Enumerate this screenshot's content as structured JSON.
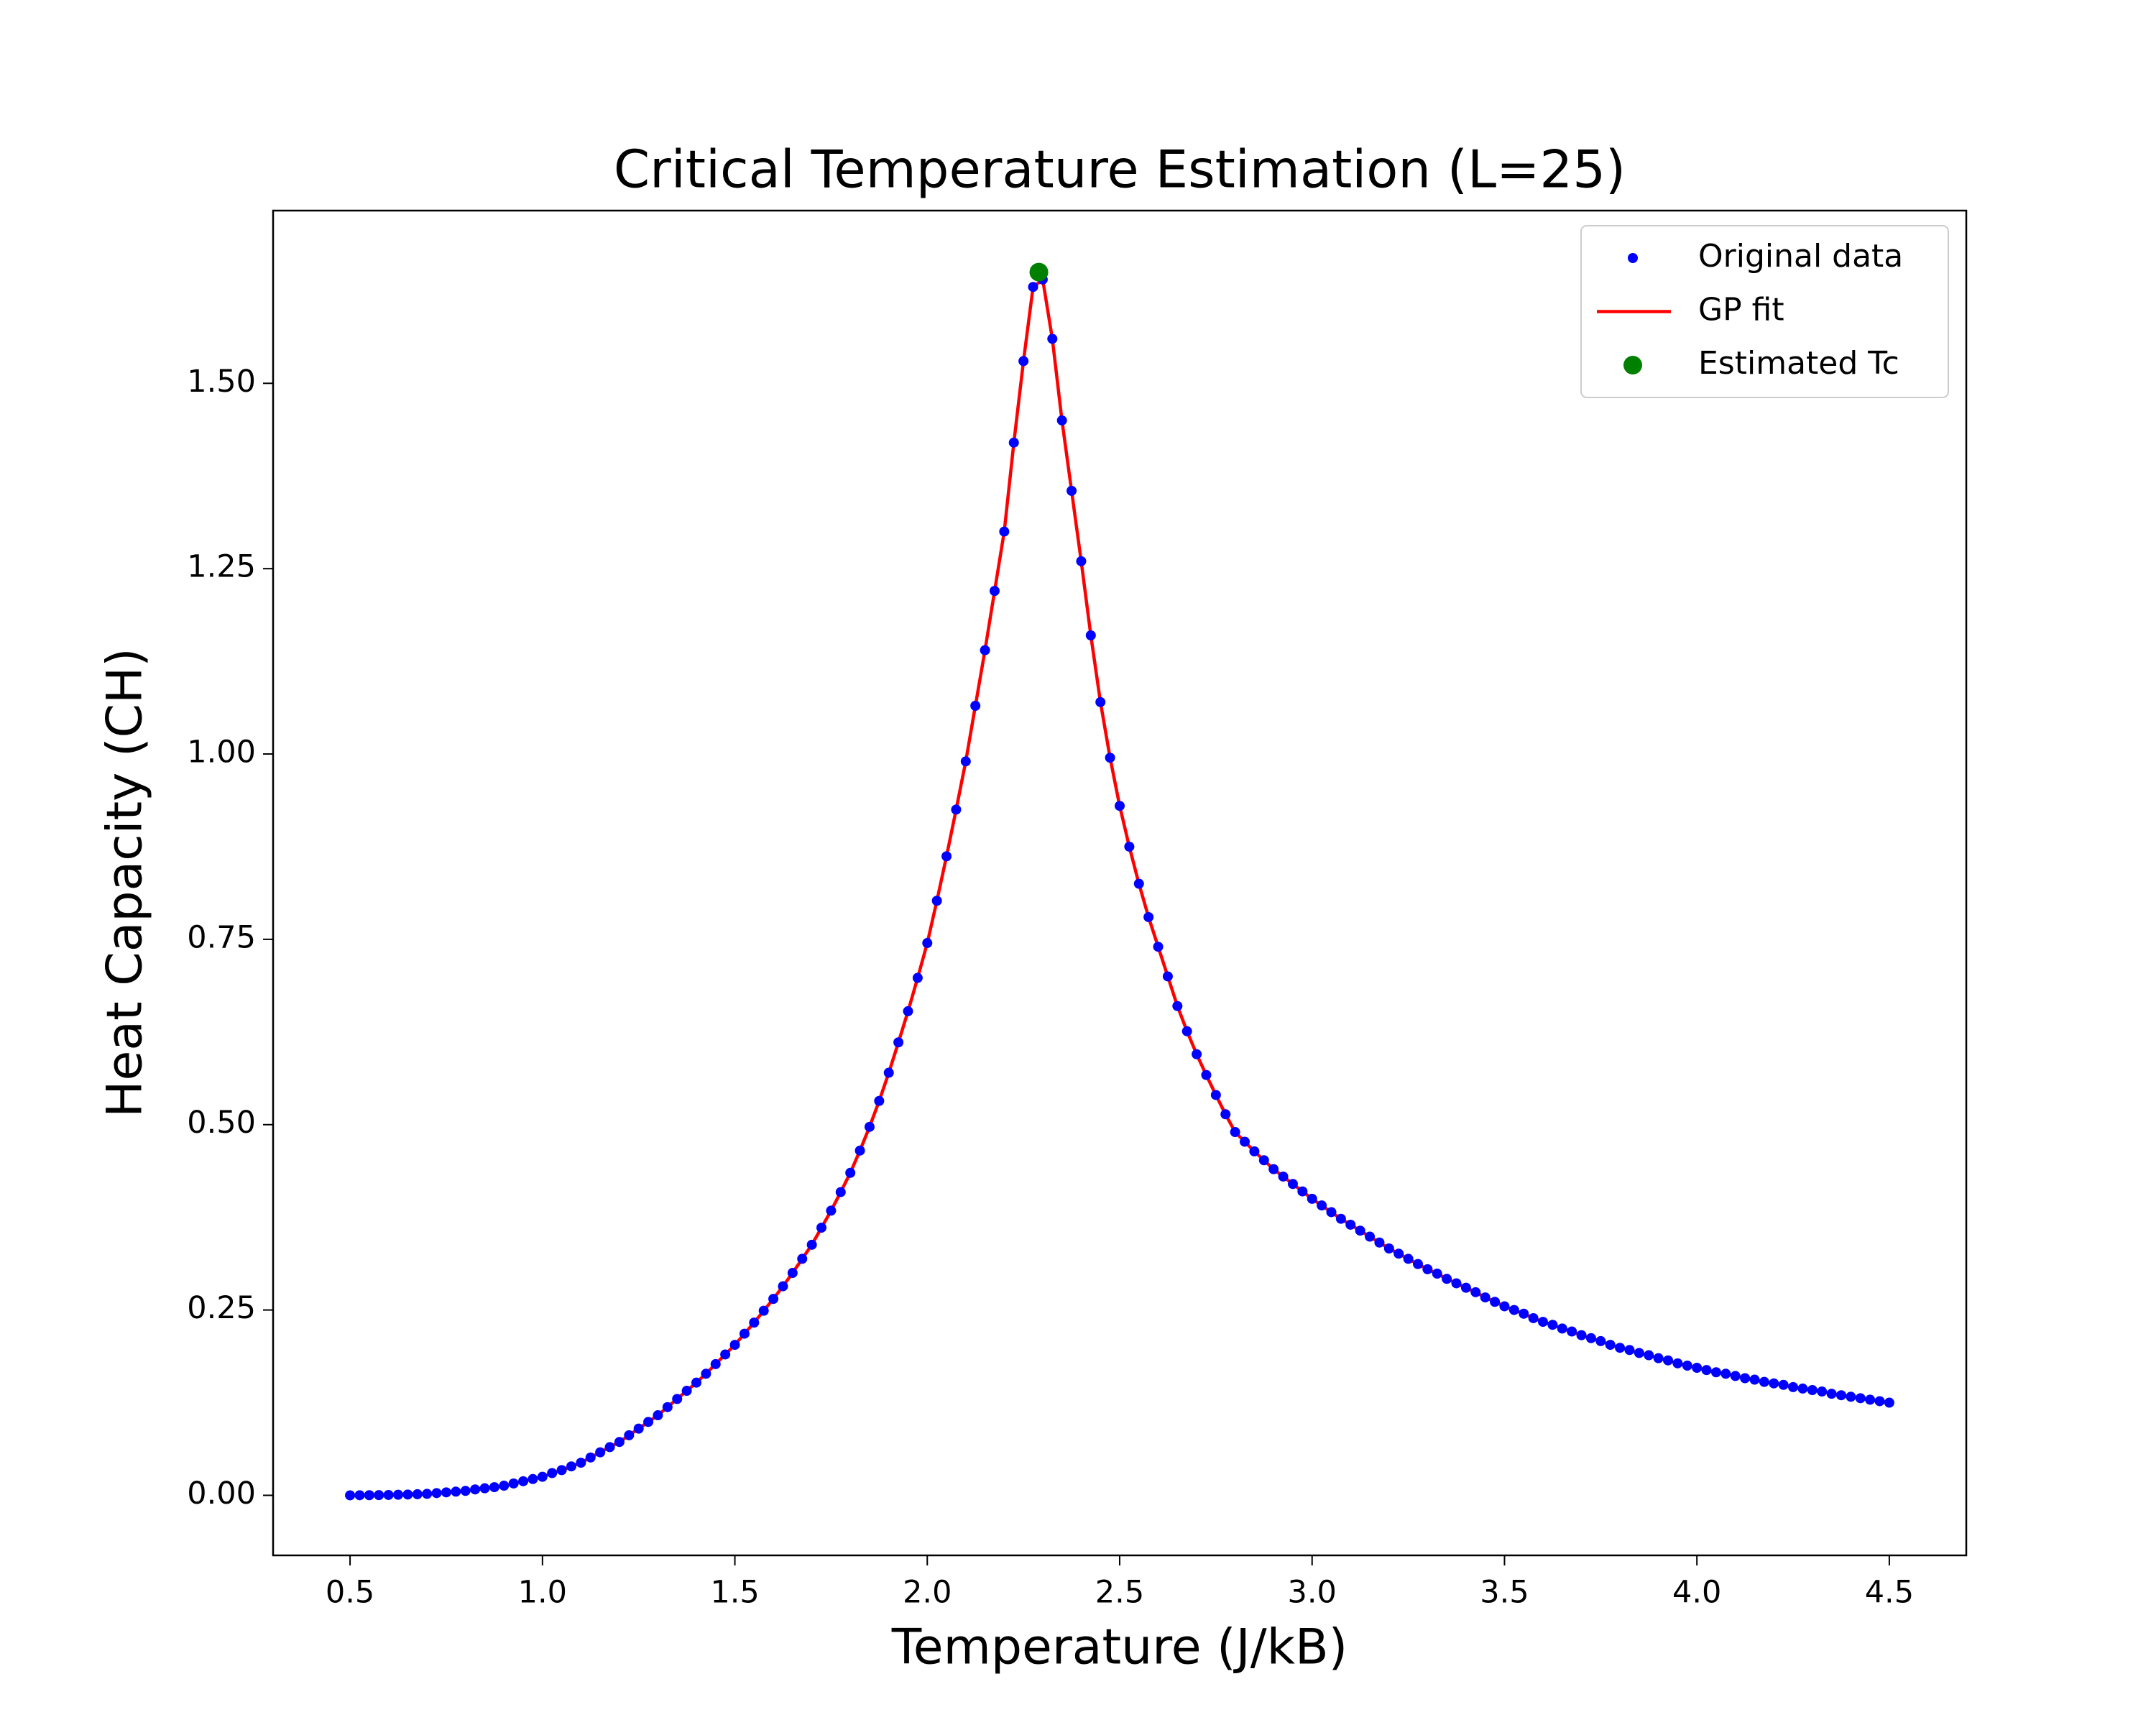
{
  "chart_data": {
    "type": "line",
    "title": "Critical Temperature Estimation (L=25)",
    "xlabel": "Temperature (J/kB)",
    "ylabel": "Heat Capacity (CH)",
    "x": [
      0.5,
      0.525,
      0.55,
      0.575,
      0.6,
      0.625,
      0.65,
      0.675,
      0.7,
      0.725,
      0.75,
      0.775,
      0.8,
      0.825,
      0.85,
      0.875,
      0.9,
      0.925,
      0.95,
      0.975,
      1.0,
      1.025,
      1.05,
      1.075,
      1.1,
      1.125,
      1.15,
      1.175,
      1.2,
      1.225,
      1.25,
      1.275,
      1.3,
      1.325,
      1.35,
      1.375,
      1.4,
      1.425,
      1.45,
      1.475,
      1.5,
      1.525,
      1.55,
      1.575,
      1.6,
      1.625,
      1.65,
      1.675,
      1.7,
      1.725,
      1.75,
      1.775,
      1.8,
      1.825,
      1.85,
      1.875,
      1.9,
      1.925,
      1.95,
      1.975,
      2.0,
      2.025,
      2.05,
      2.075,
      2.1,
      2.125,
      2.15,
      2.175,
      2.2,
      2.225,
      2.25,
      2.275,
      2.3,
      2.325,
      2.35,
      2.375,
      2.4,
      2.425,
      2.45,
      2.475,
      2.5,
      2.525,
      2.55,
      2.575,
      2.6,
      2.625,
      2.65,
      2.675,
      2.7,
      2.725,
      2.75,
      2.775,
      2.8,
      2.825,
      2.85,
      2.875,
      2.9,
      2.925,
      2.95,
      2.975,
      3.0,
      3.025,
      3.05,
      3.075,
      3.1,
      3.125,
      3.15,
      3.175,
      3.2,
      3.225,
      3.25,
      3.275,
      3.3,
      3.325,
      3.35,
      3.375,
      3.4,
      3.425,
      3.45,
      3.475,
      3.5,
      3.525,
      3.55,
      3.575,
      3.6,
      3.625,
      3.65,
      3.675,
      3.7,
      3.725,
      3.75,
      3.775,
      3.8,
      3.825,
      3.85,
      3.875,
      3.9,
      3.925,
      3.95,
      3.975,
      4.0,
      4.025,
      4.05,
      4.075,
      4.1,
      4.125,
      4.15,
      4.175,
      4.2,
      4.225,
      4.25,
      4.275,
      4.3,
      4.325,
      4.35,
      4.375,
      4.4,
      4.425,
      4.45,
      4.475,
      4.5
    ],
    "series": [
      {
        "name": "Original data",
        "color": "#0000ff",
        "marker": ".",
        "values": [
          0,
          0.0001,
          0.0002,
          0.0003,
          0.0005,
          0.0008,
          0.0011,
          0.0015,
          0.002,
          0.003,
          0.004,
          0.005,
          0.006,
          0.008,
          0.0095,
          0.011,
          0.013,
          0.016,
          0.019,
          0.022,
          0.025,
          0.03,
          0.034,
          0.039,
          0.044,
          0.051,
          0.058,
          0.065,
          0.072,
          0.081,
          0.09,
          0.099,
          0.108,
          0.119,
          0.13,
          0.141,
          0.152,
          0.164,
          0.177,
          0.19,
          0.203,
          0.218,
          0.233,
          0.249,
          0.265,
          0.282,
          0.3,
          0.319,
          0.338,
          0.361,
          0.384,
          0.409,
          0.435,
          0.465,
          0.497,
          0.532,
          0.57,
          0.611,
          0.653,
          0.698,
          0.745,
          0.802,
          0.862,
          0.925,
          0.99,
          1.065,
          1.14,
          1.22,
          1.3,
          1.42,
          1.53,
          1.63,
          1.64,
          1.56,
          1.45,
          1.355,
          1.26,
          1.16,
          1.07,
          0.995,
          0.93,
          0.875,
          0.825,
          0.78,
          0.74,
          0.7,
          0.66,
          0.626,
          0.595,
          0.567,
          0.54,
          0.514,
          0.49,
          0.477,
          0.464,
          0.452,
          0.44,
          0.43,
          0.42,
          0.41,
          0.4,
          0.391,
          0.382,
          0.373,
          0.365,
          0.357,
          0.349,
          0.341,
          0.333,
          0.326,
          0.319,
          0.312,
          0.305,
          0.299,
          0.292,
          0.286,
          0.28,
          0.274,
          0.267,
          0.261,
          0.255,
          0.25,
          0.245,
          0.239,
          0.234,
          0.23,
          0.225,
          0.221,
          0.216,
          0.212,
          0.208,
          0.203,
          0.199,
          0.196,
          0.192,
          0.189,
          0.185,
          0.182,
          0.178,
          0.175,
          0.172,
          0.169,
          0.166,
          0.164,
          0.161,
          0.158,
          0.156,
          0.153,
          0.151,
          0.149,
          0.146,
          0.144,
          0.142,
          0.14,
          0.137,
          0.135,
          0.133,
          0.131,
          0.129,
          0.127,
          0.125
        ]
      },
      {
        "name": "GP fit",
        "color": "#ff0000",
        "marker": "-",
        "values": [
          0,
          0.0001,
          0.0002,
          0.0003,
          0.0005,
          0.0008,
          0.0011,
          0.0015,
          0.002,
          0.003,
          0.004,
          0.005,
          0.006,
          0.008,
          0.0095,
          0.011,
          0.013,
          0.016,
          0.019,
          0.022,
          0.025,
          0.03,
          0.034,
          0.039,
          0.044,
          0.051,
          0.058,
          0.065,
          0.072,
          0.081,
          0.09,
          0.099,
          0.108,
          0.119,
          0.13,
          0.141,
          0.152,
          0.164,
          0.177,
          0.19,
          0.203,
          0.218,
          0.233,
          0.249,
          0.265,
          0.282,
          0.3,
          0.319,
          0.338,
          0.361,
          0.384,
          0.409,
          0.435,
          0.465,
          0.497,
          0.532,
          0.57,
          0.611,
          0.653,
          0.698,
          0.745,
          0.802,
          0.862,
          0.925,
          0.99,
          1.065,
          1.14,
          1.22,
          1.3,
          1.42,
          1.53,
          1.63,
          1.64,
          1.56,
          1.45,
          1.355,
          1.26,
          1.16,
          1.07,
          0.995,
          0.93,
          0.875,
          0.825,
          0.78,
          0.74,
          0.7,
          0.66,
          0.626,
          0.595,
          0.567,
          0.54,
          0.514,
          0.49,
          0.477,
          0.464,
          0.452,
          0.44,
          0.43,
          0.42,
          0.41,
          0.4,
          0.391,
          0.382,
          0.373,
          0.365,
          0.357,
          0.349,
          0.341,
          0.333,
          0.326,
          0.319,
          0.312,
          0.305,
          0.299,
          0.292,
          0.286,
          0.28,
          0.274,
          0.267,
          0.261,
          0.255,
          0.25,
          0.245,
          0.239,
          0.234,
          0.23,
          0.225,
          0.221,
          0.216,
          0.212,
          0.208,
          0.203,
          0.199,
          0.196,
          0.192,
          0.189,
          0.185,
          0.182,
          0.178,
          0.175,
          0.172,
          0.169,
          0.166,
          0.164,
          0.161,
          0.158,
          0.156,
          0.153,
          0.151,
          0.149,
          0.146,
          0.144,
          0.142,
          0.14,
          0.137,
          0.135,
          0.133,
          0.131,
          0.129,
          0.127,
          0.125
        ]
      },
      {
        "name": "Estimated Tc",
        "color": "#008000",
        "marker": "o",
        "x": [
          2.29
        ],
        "values": [
          1.65
        ]
      }
    ],
    "xlim": [
      0.3,
      4.7
    ],
    "ylim": [
      -0.081,
      1.733
    ],
    "xticks": [
      0.5,
      {
        "value": 1,
        "label": "1.0"
      },
      1.5,
      {
        "value": 2,
        "label": "2.0"
      },
      2.5,
      {
        "value": 3,
        "label": "3.0"
      },
      3.5,
      {
        "value": 4,
        "label": "4.0"
      },
      4.5
    ],
    "yticks": [
      {
        "value": 0,
        "label": "0.00"
      },
      {
        "value": 0.25,
        "label": "0.25"
      },
      {
        "value": 0.5,
        "label": "0.50"
      },
      {
        "value": 0.75,
        "label": "0.75"
      },
      {
        "value": 1,
        "label": "1.00"
      },
      {
        "value": 1.25,
        "label": "1.25"
      },
      {
        "value": 1.5,
        "label": "1.50"
      }
    ],
    "legend": "upper right"
  }
}
